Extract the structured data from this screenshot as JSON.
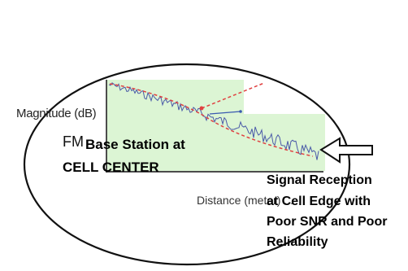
{
  "diagram": {
    "y_axis_label": "Magnitude (dB)",
    "fm_label": "FM",
    "base_station_line1": "Base Station at",
    "base_station_line2": "CELL CENTER",
    "x_axis_label": "Distance (meter) ...",
    "cell_edge_lines": [
      "Signal Reception",
      "at Cell Edge with",
      "Poor SNR and Poor",
      "Reliability"
    ],
    "colors": {
      "plot_background": "#dcf5d4",
      "measured_signal": "#4a5aa8",
      "fitted_trend": "#e04040",
      "ellipse": "#111111",
      "arrow": "#111111"
    }
  }
}
